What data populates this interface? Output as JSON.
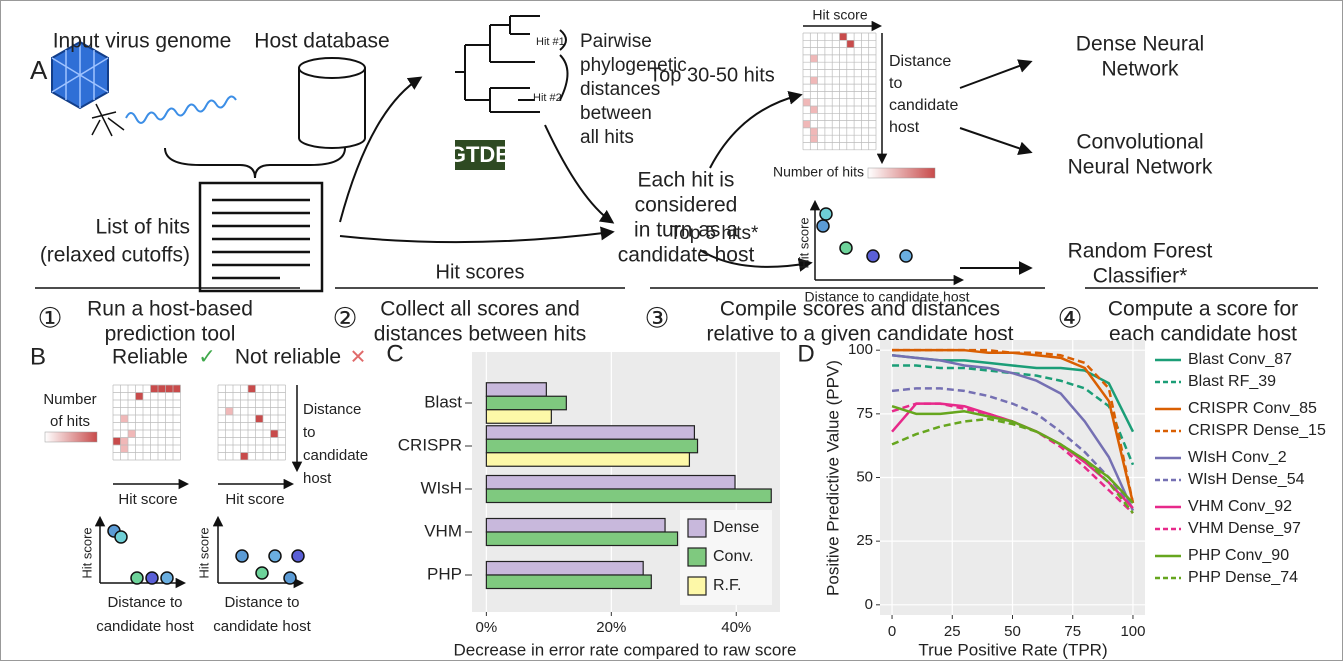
{
  "panel_a": {
    "label": "A",
    "virus_label": "Input virus genome",
    "host_label": "Host database",
    "hits_list": [
      "List of hits",
      "(relaxed cutoffs)"
    ],
    "tree": {
      "hit1": "Hit #1",
      "hit2": "Hit #2",
      "note": [
        "Pairwise",
        "phylogenetic",
        "distances",
        "between",
        "all hits"
      ],
      "logo": "GTDB"
    },
    "candidate": [
      "Each hit is",
      "considered",
      "in turn as a",
      "candidate host"
    ],
    "hit_scores": "Hit scores",
    "top_hits": "Top 30-50 hits",
    "heatmap": {
      "x_label": "Hit score",
      "y_label": [
        "Distance",
        "to",
        "candidate",
        "host"
      ],
      "legend": "Number of hits"
    },
    "top5": "Top 5 hits*",
    "scatter": {
      "y_label": "Hit score",
      "x_label": "Distance to candidate host"
    },
    "models": [
      [
        "Dense Neural",
        "Network"
      ],
      [
        "Convolutional",
        "Neural Network"
      ],
      [
        "Random Forest",
        "Classifier*"
      ]
    ],
    "steps": [
      {
        "number": "①",
        "text": [
          "Run a host-based",
          "prediction tool"
        ]
      },
      {
        "number": "②",
        "text": [
          "Collect all scores and",
          "distances between hits"
        ]
      },
      {
        "number": "③",
        "text": [
          "Compile scores and distances",
          "relative to a given candidate host"
        ]
      },
      {
        "number": "④",
        "text": [
          "Compute a score for",
          "each candidate host"
        ]
      }
    ]
  },
  "panel_b": {
    "label": "B",
    "reliable": "Reliable",
    "reliable_mark": "✓",
    "unreliable": "Not reliable",
    "unreliable_mark": "✕",
    "legend": [
      "Number",
      "of hits"
    ],
    "y_label": [
      "Distance",
      "to",
      "candidate",
      "host"
    ],
    "x_labels": [
      "Hit score",
      "Hit score"
    ],
    "scatter_y_labels": [
      "Hit score",
      "Hit score"
    ],
    "scatter_x_labels": [
      [
        "Distance to",
        "candidate host"
      ],
      [
        "Distance to",
        "candidate host"
      ]
    ]
  },
  "chart_data": [
    {
      "type": "bar",
      "panel_label": "C",
      "orientation": "horizontal",
      "categories": [
        "Blast",
        "CRISPR",
        "WIsH",
        "VHM",
        "PHP"
      ],
      "series": [
        {
          "name": "Dense",
          "color": "#c8b8dc",
          "values": [
            9.6,
            33.3,
            39.8,
            28.6,
            25.1
          ]
        },
        {
          "name": "Conv.",
          "color": "#7fc97f",
          "values": [
            12.8,
            33.8,
            45.6,
            30.6,
            26.4
          ]
        },
        {
          "name": "R.F.",
          "color": "#fdf8a8",
          "values": [
            10.4,
            32.5,
            null,
            null,
            null
          ]
        }
      ],
      "xlabel": "Decrease in error rate compared to raw score",
      "xlim": [
        -2.3,
        47.0
      ],
      "xticks": [
        {
          "value": 0,
          "label": "0%"
        },
        {
          "value": 20,
          "label": "20%"
        },
        {
          "value": 40,
          "label": "40%"
        }
      ],
      "grid": true,
      "legend": "bottom-right"
    },
    {
      "type": "line",
      "panel_label": "D",
      "x": [
        0,
        10,
        20,
        30,
        40,
        50,
        60,
        70,
        80,
        90,
        100
      ],
      "series": [
        {
          "name": "Blast Conv_87",
          "color": "#1b9e77",
          "dash": false,
          "values": [
            98,
            97,
            96,
            96,
            95,
            94,
            93,
            93,
            92,
            87,
            68
          ]
        },
        {
          "name": "Blast RF_39",
          "color": "#1b9e77",
          "dash": true,
          "values": [
            94,
            94,
            93,
            93,
            92,
            91,
            90,
            88,
            85,
            78,
            55
          ]
        },
        {
          "name": "CRISPR Conv_85",
          "color": "#d95f02",
          "dash": false,
          "values": [
            100,
            100,
            100,
            100,
            99,
            99,
            98,
            97,
            93,
            80,
            40
          ]
        },
        {
          "name": "CRISPR Dense_15",
          "color": "#d95f02",
          "dash": true,
          "values": [
            100,
            100,
            100,
            100,
            100,
            99,
            99,
            98,
            95,
            85,
            40
          ]
        },
        {
          "name": "WIsH Conv_2",
          "color": "#7570b3",
          "dash": false,
          "values": [
            98,
            97,
            96,
            94,
            93,
            91,
            88,
            83,
            72,
            58,
            37
          ]
        },
        {
          "name": "WIsH Dense_54",
          "color": "#7570b3",
          "dash": true,
          "values": [
            84,
            85,
            85,
            84,
            82,
            79,
            75,
            68,
            60,
            50,
            38
          ]
        },
        {
          "name": "VHM Conv_92",
          "color": "#e7298a",
          "dash": false,
          "values": [
            68,
            79,
            79,
            78,
            75,
            72,
            68,
            63,
            56,
            48,
            38
          ]
        },
        {
          "name": "VHM Dense_97",
          "color": "#e7298a",
          "dash": true,
          "values": [
            76,
            79,
            79,
            77,
            75,
            72,
            68,
            62,
            54,
            45,
            36
          ]
        },
        {
          "name": "PHP Conv_90",
          "color": "#66a61e",
          "dash": false,
          "values": [
            78,
            75,
            75,
            76,
            74,
            72,
            68,
            63,
            57,
            50,
            40
          ]
        },
        {
          "name": "PHP Dense_74",
          "color": "#66a61e",
          "dash": true,
          "values": [
            63,
            67,
            70,
            72,
            73,
            71,
            68,
            63,
            57,
            48,
            36
          ]
        }
      ],
      "xlabel": "True Positive Rate (TPR)",
      "ylabel": "Positive Predictive Value (PPV)",
      "xlim": [
        -5,
        105
      ],
      "ylim": [
        -4,
        104
      ],
      "xticks": [
        0,
        25,
        50,
        75,
        100
      ],
      "yticks": [
        0,
        25,
        50,
        75,
        100
      ],
      "grid": true,
      "legend": "right"
    }
  ]
}
